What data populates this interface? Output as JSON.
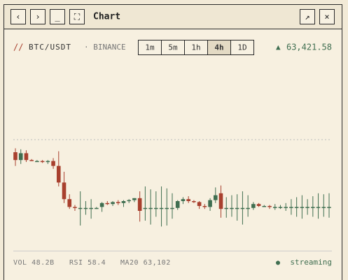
{
  "window": {
    "title": "Chart",
    "nav_buttons": [
      "‹",
      "›",
      "_",
      "⛶"
    ],
    "action_buttons": [
      "↗",
      "×"
    ]
  },
  "toolbar": {
    "prefix": "//",
    "symbol": "BTC/USDT",
    "exchange": "· BINANCE",
    "timeframes": [
      "1m",
      "5m",
      "1h",
      "4h",
      "1D"
    ],
    "active_timeframe": "4h",
    "price_arrow": "▲",
    "price": "63,421.58"
  },
  "chart_data": {
    "type": "candlestick",
    "open": [
      80,
      72,
      79,
      72,
      71,
      71,
      70,
      71,
      66,
      49,
      32,
      24,
      23,
      23,
      23,
      23,
      24,
      28,
      27,
      29,
      28,
      30,
      31,
      33,
      23,
      23,
      23,
      23,
      23,
      23,
      23,
      30,
      32,
      30,
      29,
      25,
      24,
      31,
      38,
      23,
      23,
      23,
      23,
      23,
      23,
      27,
      25,
      25,
      24,
      24,
      24,
      24,
      24,
      24,
      24,
      24,
      24,
      24,
      24
    ],
    "high": [
      84,
      83,
      82,
      73,
      72,
      72,
      72,
      74,
      81,
      60,
      37,
      26,
      40,
      30,
      32,
      24,
      29,
      30,
      30,
      31,
      31,
      32,
      33,
      40,
      45,
      42,
      40,
      45,
      43,
      38,
      31,
      34,
      35,
      31,
      30,
      27,
      33,
      44,
      46,
      34,
      36,
      37,
      40,
      36,
      29,
      28,
      26,
      26,
      27,
      26,
      28,
      32,
      34,
      36,
      32,
      35,
      38,
      37,
      38
    ],
    "low": [
      66,
      68,
      70,
      71,
      70,
      69,
      68,
      63,
      45,
      28,
      22,
      20,
      5,
      16,
      12,
      22,
      19,
      26,
      25,
      26,
      24,
      28,
      29,
      9,
      10,
      6,
      14,
      4,
      5,
      12,
      21,
      27,
      28,
      28,
      22,
      22,
      20,
      28,
      13,
      13,
      14,
      10,
      6,
      14,
      21,
      24,
      24,
      22,
      21,
      22,
      20,
      16,
      14,
      12,
      16,
      14,
      12,
      14,
      13
    ],
    "close": [
      72,
      79,
      72,
      71,
      71,
      70,
      71,
      66,
      49,
      32,
      24,
      23,
      23,
      23,
      23,
      23,
      28,
      27,
      29,
      28,
      30,
      31,
      33,
      20,
      23,
      23,
      23,
      23,
      23,
      23,
      30,
      32,
      30,
      29,
      25,
      24,
      31,
      36,
      22,
      23,
      23,
      23,
      23,
      23,
      27,
      25,
      25,
      24,
      24,
      24,
      24,
      24,
      24,
      24,
      24,
      24,
      24,
      24,
      24
    ],
    "ylim": [
      0,
      100
    ],
    "up_color": "#3f6e50",
    "down_color": "#a8402e"
  },
  "footer": {
    "stats": [
      "VOL 48.2B",
      "RSI 58.4",
      "MA20 63,102"
    ],
    "status_icon": "●",
    "status": "streaming"
  }
}
